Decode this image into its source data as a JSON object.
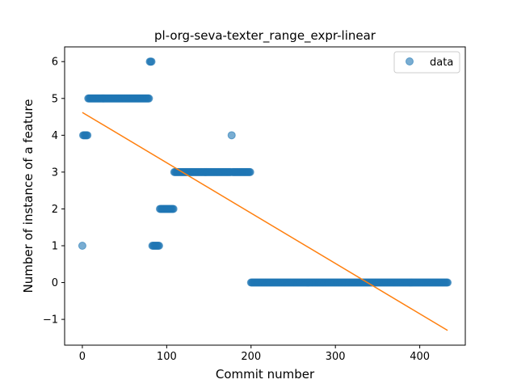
{
  "chart_data": {
    "type": "scatter",
    "title": "pl-org-seva-texter_range_expr-linear",
    "xlabel": "Commit number",
    "ylabel": "Number of instance of a feature",
    "xlim": [
      -21,
      454
    ],
    "ylim": [
      -1.7,
      6.4
    ],
    "xticks": [
      0,
      100,
      200,
      300,
      400
    ],
    "yticks": [
      -1,
      0,
      1,
      2,
      3,
      4,
      5,
      6
    ],
    "xtick_labels": [
      "0",
      "100",
      "200",
      "300",
      "400"
    ],
    "ytick_labels": [
      "−1",
      "0",
      "1",
      "2",
      "3",
      "4",
      "5",
      "6"
    ],
    "legend": {
      "position": "top-right",
      "entries": [
        "data"
      ]
    },
    "grid": false,
    "series": [
      {
        "name": "data",
        "kind": "scatter",
        "color": "#1f77b4",
        "segments": [
          {
            "x_start": 0,
            "x_end": 0,
            "y": 1
          },
          {
            "x_start": 1,
            "x_end": 6,
            "y": 4
          },
          {
            "x_start": 7,
            "x_end": 79,
            "y": 5
          },
          {
            "x_start": 80,
            "x_end": 82,
            "y": 6
          },
          {
            "x_start": 83,
            "x_end": 91,
            "y": 1
          },
          {
            "x_start": 92,
            "x_end": 108,
            "y": 2
          },
          {
            "x_start": 109,
            "x_end": 176,
            "y": 3
          },
          {
            "x_start": 177,
            "x_end": 177,
            "y": 4
          },
          {
            "x_start": 178,
            "x_end": 199,
            "y": 3
          },
          {
            "x_start": 200,
            "x_end": 433,
            "y": 0
          }
        ]
      },
      {
        "name": "",
        "kind": "line",
        "color": "#ff7f0e",
        "x": [
          0,
          433
        ],
        "y": [
          4.62,
          -1.3
        ]
      }
    ]
  }
}
